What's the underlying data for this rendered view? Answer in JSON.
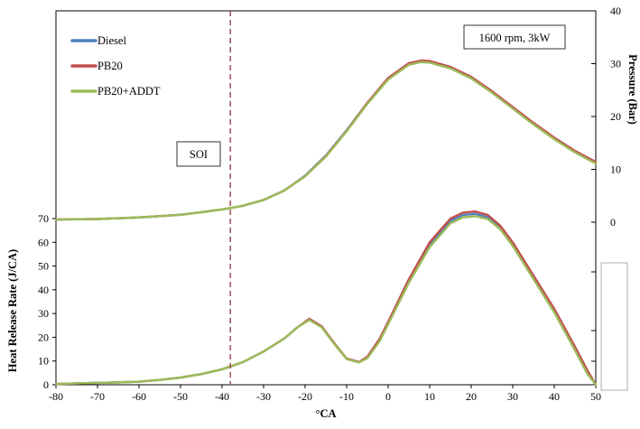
{
  "chart_data": {
    "type": "line",
    "title": "",
    "condition_label": "1600 rpm, 3kW",
    "soi_label": "SOI",
    "soi_x": -38,
    "xlabel": "°CA",
    "ylabel_left": "Heat Release Rate (J/CA)",
    "ylabel_right": "Pressure (Bar)",
    "xlim": [
      -80,
      50
    ],
    "x_ticks": [
      -80,
      -70,
      -60,
      -50,
      -40,
      -30,
      -20,
      -10,
      0,
      10,
      20,
      30,
      40,
      50
    ],
    "hrr_ylim": [
      0,
      70
    ],
    "hrr_ticks": [
      0,
      10,
      20,
      30,
      40,
      50,
      60,
      70
    ],
    "pressure_ylim": [
      0,
      40
    ],
    "pressure_ticks": [
      0,
      10,
      20,
      30,
      40
    ],
    "grid": false,
    "legend_position": "top-left",
    "series": [
      {
        "name": "Diesel",
        "color": "#4f81bd",
        "pressure": {
          "x": [
            -80,
            -70,
            -60,
            -50,
            -45,
            -40,
            -35,
            -30,
            -25,
            -20,
            -15,
            -10,
            -5,
            0,
            5,
            8,
            10,
            15,
            20,
            25,
            30,
            35,
            40,
            45,
            50
          ],
          "y": [
            0.5,
            0.6,
            0.9,
            1.4,
            1.9,
            2.4,
            3.1,
            4.2,
            6.0,
            8.8,
            12.6,
            17.4,
            22.6,
            27.2,
            30.0,
            30.4,
            30.3,
            29.2,
            27.3,
            24.6,
            21.6,
            18.6,
            15.8,
            13.3,
            11.2
          ]
        },
        "hrr": {
          "x": [
            -80,
            -75,
            -70,
            -65,
            -60,
            -55,
            -50,
            -45,
            -40,
            -35,
            -30,
            -25,
            -22,
            -19,
            -16,
            -13,
            -10,
            -7,
            -5,
            -2,
            0,
            5,
            10,
            15,
            18,
            21,
            24,
            27,
            30,
            35,
            40,
            45,
            48,
            50
          ],
          "y": [
            0.3,
            0.6,
            0.8,
            1.0,
            1.3,
            2.0,
            3.0,
            4.5,
            6.5,
            9.5,
            14.0,
            19.5,
            24.0,
            27.5,
            24.5,
            17.5,
            11.0,
            9.5,
            11.5,
            19.0,
            26.0,
            44.0,
            59.0,
            69.0,
            71.5,
            72.0,
            70.5,
            66.0,
            59.0,
            45.0,
            31.0,
            15.0,
            5.0,
            0.0
          ]
        }
      },
      {
        "name": "PB20",
        "color": "#c0504d",
        "pressure": {
          "x": [
            -80,
            -70,
            -60,
            -50,
            -45,
            -40,
            -35,
            -30,
            -25,
            -20,
            -15,
            -10,
            -5,
            0,
            5,
            8,
            10,
            15,
            20,
            25,
            30,
            35,
            40,
            45,
            50
          ],
          "y": [
            0.5,
            0.6,
            0.9,
            1.4,
            1.9,
            2.4,
            3.1,
            4.2,
            6.0,
            8.7,
            12.5,
            17.3,
            22.6,
            27.3,
            30.1,
            30.6,
            30.5,
            29.4,
            27.5,
            24.8,
            21.8,
            18.8,
            16.0,
            13.5,
            11.4
          ]
        },
        "hrr": {
          "x": [
            -80,
            -75,
            -70,
            -65,
            -60,
            -55,
            -50,
            -45,
            -40,
            -35,
            -30,
            -25,
            -22,
            -19,
            -16,
            -13,
            -10,
            -7,
            -5,
            -2,
            0,
            5,
            10,
            15,
            18,
            21,
            24,
            27,
            30,
            35,
            40,
            45,
            48,
            50
          ],
          "y": [
            0.3,
            0.6,
            0.8,
            1.0,
            1.3,
            2.0,
            3.0,
            4.5,
            6.5,
            9.5,
            14.0,
            19.5,
            24.0,
            27.8,
            24.6,
            17.5,
            11.0,
            9.6,
            11.8,
            19.5,
            26.5,
            44.5,
            60.0,
            70.0,
            72.5,
            73.0,
            71.5,
            67.0,
            60.0,
            46.0,
            32.0,
            16.0,
            6.0,
            0.0
          ]
        }
      },
      {
        "name": "PB20+ADDT",
        "color": "#9bbb59",
        "pressure": {
          "x": [
            -80,
            -70,
            -60,
            -50,
            -45,
            -40,
            -35,
            -30,
            -25,
            -20,
            -15,
            -10,
            -5,
            0,
            5,
            8,
            10,
            15,
            20,
            25,
            30,
            35,
            40,
            45,
            50
          ],
          "y": [
            0.5,
            0.6,
            0.9,
            1.4,
            1.9,
            2.4,
            3.1,
            4.2,
            6.0,
            8.7,
            12.4,
            17.2,
            22.4,
            27.0,
            29.8,
            30.3,
            30.2,
            29.1,
            27.2,
            24.5,
            21.5,
            18.5,
            15.7,
            13.2,
            11.1
          ]
        },
        "hrr": {
          "x": [
            -80,
            -75,
            -70,
            -65,
            -60,
            -55,
            -50,
            -45,
            -40,
            -35,
            -30,
            -25,
            -22,
            -19,
            -16,
            -13,
            -10,
            -7,
            -5,
            -2,
            0,
            5,
            10,
            15,
            18,
            21,
            24,
            27,
            30,
            35,
            40,
            45,
            48,
            50
          ],
          "y": [
            0.3,
            0.6,
            0.8,
            1.0,
            1.3,
            2.0,
            3.0,
            4.5,
            6.5,
            9.5,
            14.0,
            19.5,
            24.0,
            27.3,
            24.2,
            17.2,
            10.8,
            9.4,
            11.2,
            18.5,
            25.5,
            43.0,
            58.0,
            68.0,
            70.5,
            71.0,
            69.8,
            65.5,
            58.5,
            44.5,
            30.5,
            14.5,
            4.5,
            0.0
          ]
        }
      }
    ]
  }
}
